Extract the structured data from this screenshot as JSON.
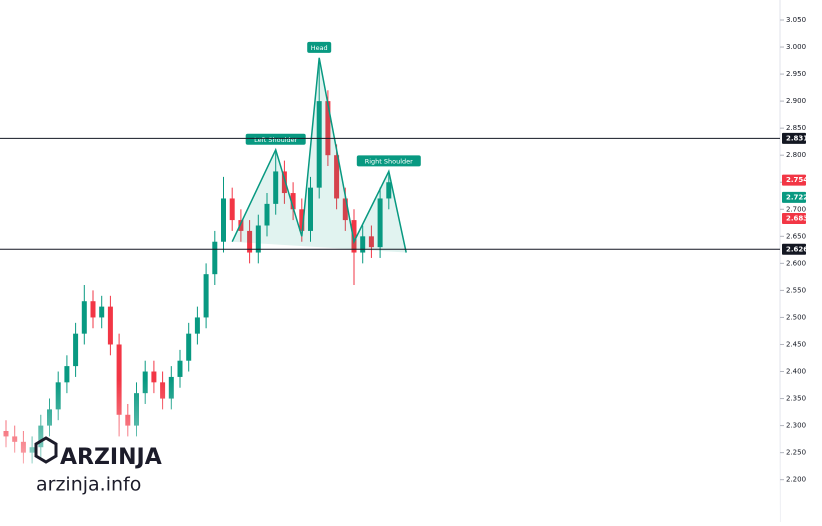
{
  "chart_data": {
    "type": "candlestick",
    "open": [
      2.29,
      2.28,
      2.27,
      2.25,
      2.26,
      2.3,
      2.33,
      2.38,
      2.41,
      2.47,
      2.53,
      2.5,
      2.52,
      2.45,
      2.32,
      2.3,
      2.36,
      2.4,
      2.38,
      2.35,
      2.39,
      2.42,
      2.47,
      2.5,
      2.58,
      2.64,
      2.72,
      2.68,
      2.66,
      2.62,
      2.67,
      2.71,
      2.77,
      2.73,
      2.7,
      2.66,
      2.74,
      2.9,
      2.8,
      2.72,
      2.68,
      2.62,
      2.65,
      2.63,
      2.72
    ],
    "high": [
      2.31,
      2.3,
      2.29,
      2.28,
      2.32,
      2.35,
      2.4,
      2.43,
      2.49,
      2.56,
      2.55,
      2.54,
      2.54,
      2.47,
      2.34,
      2.38,
      2.42,
      2.42,
      2.4,
      2.41,
      2.44,
      2.49,
      2.52,
      2.6,
      2.66,
      2.76,
      2.74,
      2.7,
      2.68,
      2.69,
      2.73,
      2.81,
      2.79,
      2.75,
      2.72,
      2.76,
      2.98,
      2.92,
      2.82,
      2.74,
      2.7,
      2.67,
      2.67,
      2.74,
      2.77
    ],
    "low": [
      2.26,
      2.25,
      2.23,
      2.23,
      2.24,
      2.28,
      2.31,
      2.36,
      2.39,
      2.45,
      2.48,
      2.48,
      2.43,
      2.28,
      2.28,
      2.28,
      2.34,
      2.36,
      2.33,
      2.33,
      2.37,
      2.4,
      2.45,
      2.48,
      2.56,
      2.62,
      2.66,
      2.64,
      2.6,
      2.6,
      2.65,
      2.69,
      2.71,
      2.68,
      2.64,
      2.64,
      2.72,
      2.78,
      2.7,
      2.66,
      2.56,
      2.6,
      2.61,
      2.61,
      2.7
    ],
    "close": [
      2.28,
      2.27,
      2.25,
      2.26,
      2.3,
      2.33,
      2.38,
      2.41,
      2.47,
      2.53,
      2.5,
      2.52,
      2.45,
      2.32,
      2.3,
      2.36,
      2.4,
      2.38,
      2.35,
      2.39,
      2.42,
      2.47,
      2.5,
      2.58,
      2.64,
      2.72,
      2.68,
      2.66,
      2.62,
      2.67,
      2.71,
      2.77,
      2.73,
      2.7,
      2.66,
      2.74,
      2.9,
      2.8,
      2.72,
      2.68,
      2.62,
      2.65,
      2.63,
      2.72,
      2.75
    ],
    "up_color": "#089981",
    "down_color": "#f23645",
    "pattern": {
      "x": [
        26,
        31,
        34,
        36,
        40,
        44,
        46
      ],
      "y": [
        2.64,
        2.81,
        2.65,
        2.98,
        2.64,
        2.77,
        2.62
      ],
      "color": "#089981"
    },
    "annotations": [
      {
        "text": "Left Shoulder",
        "point": 1
      },
      {
        "text": "Head",
        "point": 3
      },
      {
        "text": "Right Shoulder",
        "point": 5
      }
    ],
    "price_labels": [
      {
        "value": 2.831,
        "color": "#131722",
        "line": true
      },
      {
        "value": 2.754,
        "color": "#f23645",
        "line": false
      },
      {
        "value": 2.722,
        "color": "#089981",
        "line": false
      },
      {
        "value": 2.683,
        "color": "#f23645",
        "line": false
      },
      {
        "value": 2.626,
        "color": "#131722",
        "line": true
      }
    ],
    "ylim": [
      2.16,
      3.08
    ],
    "yticks": [
      {
        "value": 2.2,
        "label": "2.200"
      },
      {
        "value": 2.25,
        "label": "2.250"
      },
      {
        "value": 2.3,
        "label": "2.300"
      },
      {
        "value": 2.35,
        "label": "2.350"
      },
      {
        "value": 2.4,
        "label": "2.400"
      },
      {
        "value": 2.45,
        "label": "2.450"
      },
      {
        "value": 2.5,
        "label": "2.500"
      },
      {
        "value": 2.55,
        "label": "2.550"
      },
      {
        "value": 2.6,
        "label": "2.600"
      },
      {
        "value": 2.65,
        "label": "2.650"
      },
      {
        "value": 2.7,
        "label": "2.700"
      },
      {
        "value": 2.75,
        "label": "2.750"
      },
      {
        "value": 2.8,
        "label": "2.800"
      },
      {
        "value": 2.85,
        "label": "2.850"
      },
      {
        "value": 2.9,
        "label": "2.900"
      },
      {
        "value": 2.95,
        "label": "2.950"
      },
      {
        "value": 3.0,
        "label": "3.000"
      },
      {
        "value": 3.05,
        "label": "3.050"
      }
    ],
    "grid": false
  },
  "watermark": {
    "brand": "ARZINJA",
    "site": "arzinja.info"
  }
}
